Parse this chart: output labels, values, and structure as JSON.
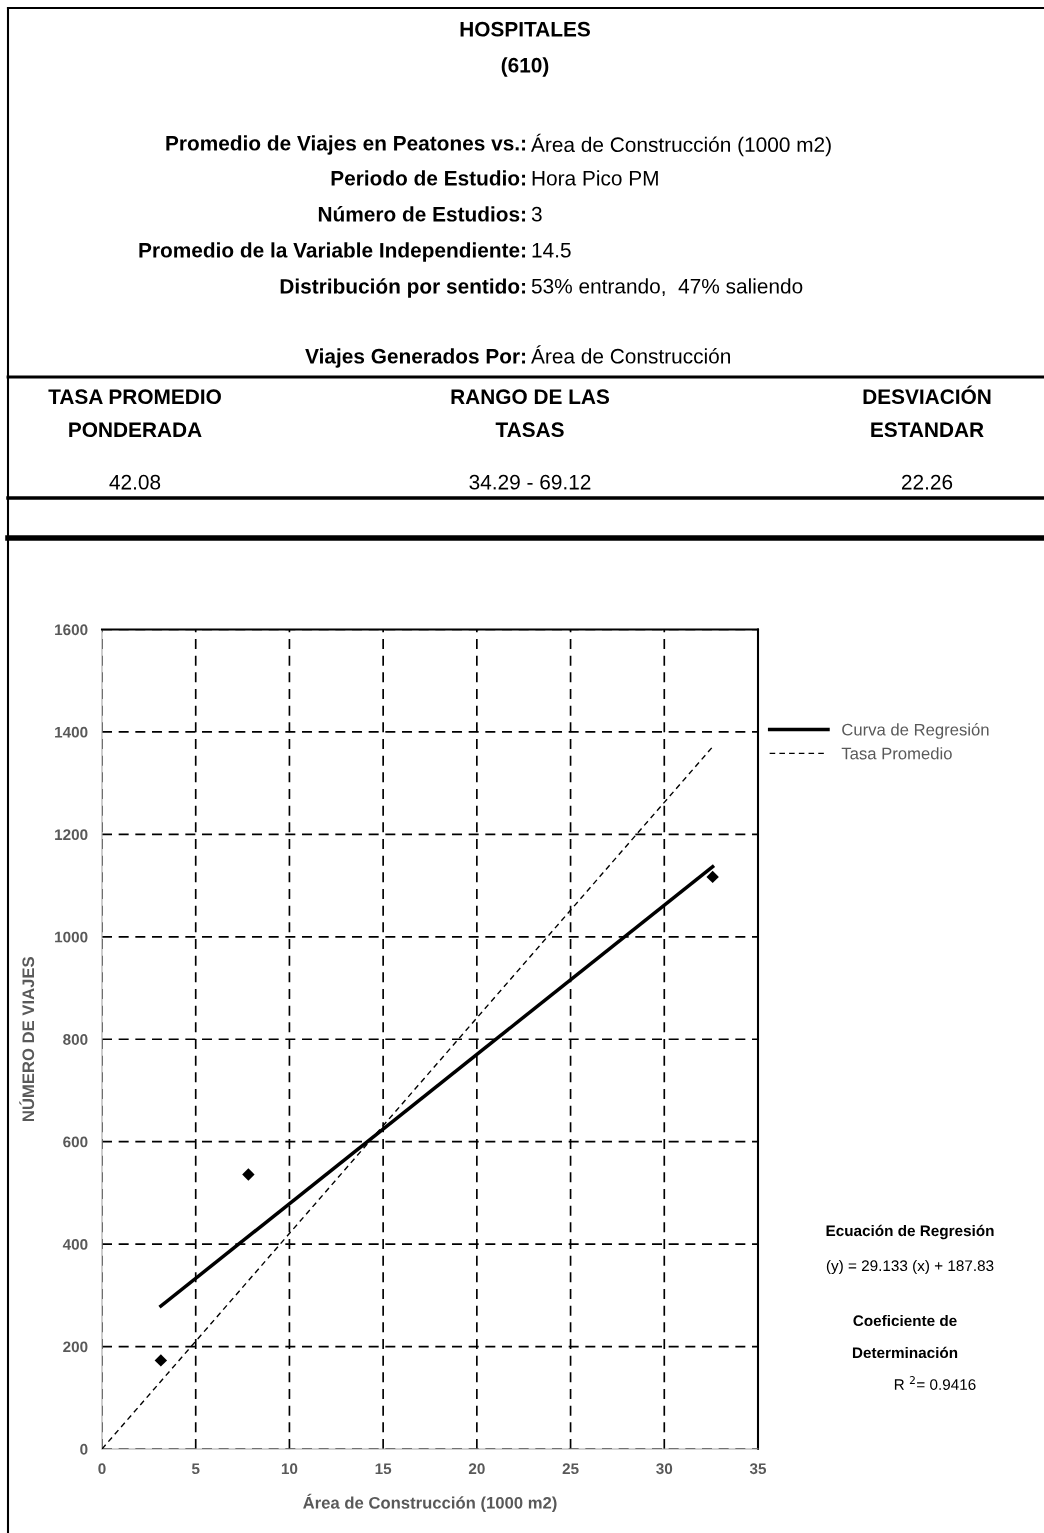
{
  "chart_data": {
    "type": "scatter",
    "xlabel": "Área de Construcción (1000 m2)",
    "ylabel": "NÚMERO DE VIAJES",
    "xlim": [
      0,
      35
    ],
    "xticks": [
      0,
      5,
      10,
      15,
      20,
      25,
      30,
      35
    ],
    "ylim": [
      0,
      1600
    ],
    "yticks": [
      0,
      200,
      400,
      600,
      800,
      1000,
      1200,
      1400,
      1600
    ],
    "grid": true,
    "legend": "right",
    "series": [
      {
        "color": "#000000",
        "marker": "diamond",
        "x": [
          3.14,
          7.81,
          32.58
        ],
        "values": [
          173,
          536,
          1117
        ]
      },
      {
        "type": "line",
        "name": "Curva de Regresión",
        "color": "#000000",
        "line_style": "solid",
        "x": [
          3.14,
          32.58
        ],
        "values": [
          279,
          1137
        ]
      },
      {
        "type": "line",
        "name": "Tasa Promedio",
        "color": "#000000",
        "line_style": "dashed",
        "x": [
          0,
          32.58
        ],
        "values": [
          0,
          1371
        ]
      }
    ],
    "annotations": [
      "HOSPITALES",
      "(610)",
      "Promedio de Viajes en Peatones vs.:",
      "Área de Construcción (1000 m2)",
      "Periodo de Estudio:",
      "Hora Pico PM",
      "Número de Estudios:",
      "3",
      "Promedio de la Variable Independiente:",
      "14.5",
      "Distribución por sentido:",
      "53% entrando,  47% saliendo",
      "Viajes Generados Por:",
      "Área de Construcción",
      "TASA PROMEDIO\nPONDERADA",
      "RANGO DE LAS\nTASAS",
      "DESVIACIÓN\nESTANDAR",
      "42.08",
      "34.29 - 69.12",
      "22.26",
      "Ecuación de Regresión",
      "(y) = 29.133 (x) + 187.83",
      "Coeficiente de",
      "Determinación",
      "R $^{2}$= 0.9416"
    ]
  }
}
